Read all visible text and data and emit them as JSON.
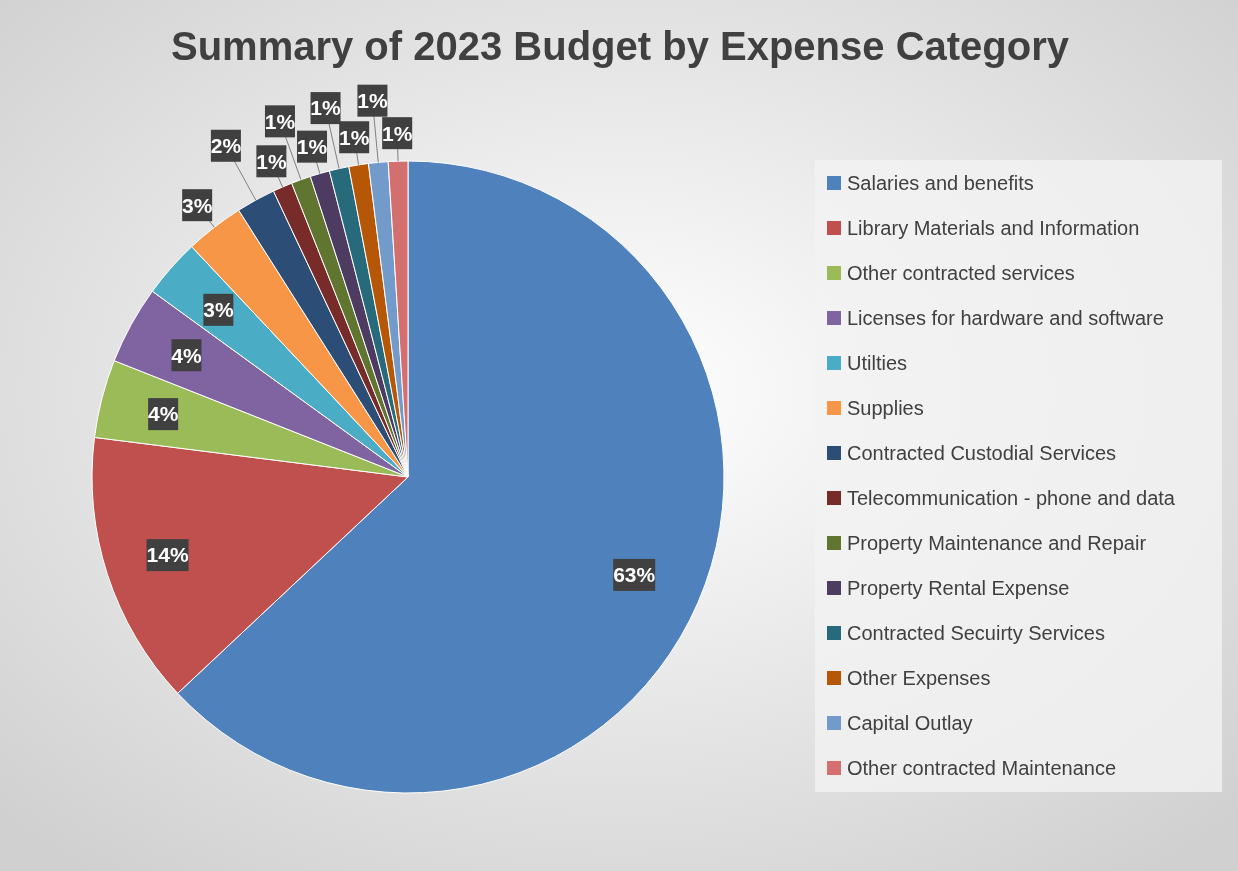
{
  "chart_data": {
    "type": "pie",
    "title": "Summary of 2023 Budget by Expense Category",
    "categories": [
      "Salaries and benefits",
      "Library Materials and Information",
      "Other contracted services",
      "Licenses for hardware and software",
      "Utilties",
      "Supplies",
      "Contracted Custodial Services",
      "Telecommunication - phone and data",
      "Property Maintenance and Repair",
      "Property Rental Expense",
      "Contracted Secuirty Services",
      "Other Expenses",
      "Capital Outlay",
      "Other contracted Maintenance"
    ],
    "values": [
      63,
      14,
      4,
      4,
      3,
      3,
      2,
      1,
      1,
      1,
      1,
      1,
      1,
      1
    ],
    "colors": [
      "#4f81bd",
      "#c0504d",
      "#9bbb59",
      "#8064a2",
      "#4bacc6",
      "#f79646",
      "#2c4d75",
      "#772c2a",
      "#5f7530",
      "#4d3b62",
      "#276a7c",
      "#b65708",
      "#729aca",
      "#d3706f"
    ],
    "value_labels": [
      "63%",
      "14%",
      "4%",
      "4%",
      "3%",
      "3%",
      "2%",
      "1%",
      "1%",
      "1%",
      "1%",
      "1%",
      "1%",
      "1%"
    ],
    "legend": "right"
  }
}
